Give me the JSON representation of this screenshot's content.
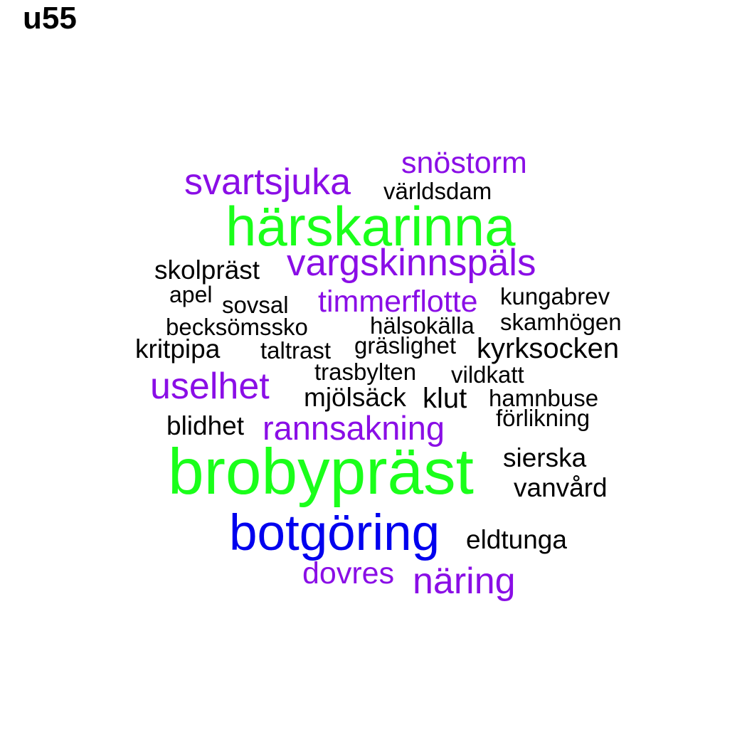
{
  "title": "u55",
  "colors": {
    "black": "#000000",
    "purple": "#8a0ee6",
    "green": "#1aff1a",
    "blue": "#0000ee"
  },
  "words": {
    "snostorm": "snöstorm",
    "svartsjuka": "svartsjuka",
    "varldsdam": "världsdam",
    "harskarinna": "härskarinna",
    "skolprast": "skolpräst",
    "vargskinnspals": "vargskinnspäls",
    "apel": "apel",
    "sovsal": "sovsal",
    "timmerflotte": "timmerflotte",
    "kungabrev": "kungabrev",
    "becksomssko": "becksömssko",
    "halsokalla": "hälsokälla",
    "skamhogen": "skamhögen",
    "kritpipa": "kritpipa",
    "taltrast": "taltrast",
    "graslighet": "gräslighet",
    "kyrksocken": "kyrksocken",
    "trasbylten": "trasbylten",
    "vildkatt": "vildkatt",
    "uselhet": "uselhet",
    "mjolsack": "mjölsäck",
    "klut": "klut",
    "hamnbuse": "hamnbuse",
    "forlikning": "förlikning",
    "blidhet": "blidhet",
    "rannsakning": "rannsakning",
    "brobyprast": "brobypräst",
    "sierska": "sierska",
    "vanvard": "vanvård",
    "botgoring": "botgöring",
    "eldtunga": "eldtunga",
    "dovres": "dovres",
    "naring": "näring"
  }
}
